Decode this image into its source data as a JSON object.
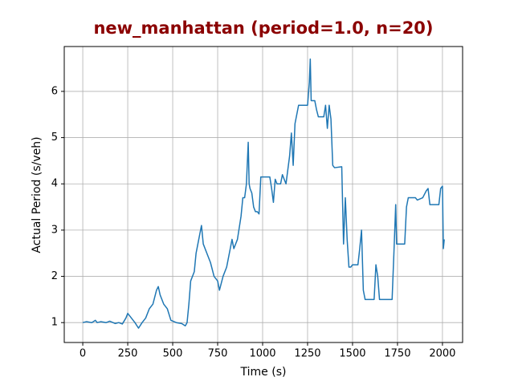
{
  "chart_data": {
    "type": "line",
    "title": "new_manhattan (period=1.0, n=20)",
    "title_color": "#8b0000",
    "x_label": "Time (s)",
    "y_label": "Actual Period (s/veh)",
    "xlim": [
      -103,
      2112
    ],
    "ylim": [
      0.57,
      6.97
    ],
    "xticks": [
      0,
      250,
      500,
      750,
      1000,
      1250,
      1500,
      1750,
      2000
    ],
    "yticks": [
      1,
      2,
      3,
      4,
      5,
      6
    ],
    "grid": true,
    "x": [
      0,
      20,
      50,
      70,
      80,
      100,
      130,
      150,
      180,
      200,
      220,
      240,
      250,
      270,
      290,
      310,
      330,
      350,
      370,
      390,
      410,
      420,
      430,
      450,
      470,
      490,
      520,
      550,
      570,
      580,
      590,
      600,
      620,
      630,
      640,
      650,
      660,
      670,
      690,
      710,
      730,
      750,
      760,
      780,
      800,
      820,
      830,
      840,
      860,
      880,
      890,
      900,
      910,
      920,
      925,
      930,
      940,
      950,
      960,
      970,
      980,
      990,
      1000,
      1040,
      1050,
      1060,
      1070,
      1080,
      1100,
      1110,
      1130,
      1150,
      1160,
      1170,
      1180,
      1200,
      1220,
      1250,
      1260,
      1265,
      1270,
      1290,
      1300,
      1310,
      1340,
      1350,
      1360,
      1370,
      1380,
      1390,
      1400,
      1440,
      1450,
      1460,
      1470,
      1480,
      1490,
      1500,
      1530,
      1540,
      1550,
      1560,
      1570,
      1620,
      1630,
      1640,
      1650,
      1700,
      1720,
      1730,
      1740,
      1745,
      1790,
      1800,
      1810,
      1850,
      1860,
      1890,
      1910,
      1920,
      1930,
      1980,
      1990,
      2000,
      2005,
      2010
    ],
    "series": [
      {
        "color": "#1f77b4",
        "values": [
          1.0,
          1.02,
          1.0,
          1.05,
          1.0,
          1.02,
          1.0,
          1.03,
          0.98,
          1.0,
          0.97,
          1.1,
          1.2,
          1.1,
          1.0,
          0.88,
          1.0,
          1.1,
          1.3,
          1.4,
          1.7,
          1.78,
          1.6,
          1.4,
          1.3,
          1.05,
          1.0,
          0.98,
          0.93,
          1.0,
          1.4,
          1.9,
          2.1,
          2.5,
          2.7,
          2.9,
          3.1,
          2.7,
          2.5,
          2.3,
          2.0,
          1.9,
          1.7,
          2.0,
          2.2,
          2.6,
          2.8,
          2.6,
          2.8,
          3.3,
          3.7,
          3.7,
          4.0,
          4.9,
          4.0,
          3.9,
          3.8,
          3.5,
          3.4,
          3.4,
          3.35,
          4.15,
          4.15,
          4.15,
          3.9,
          3.6,
          4.1,
          4.0,
          4.0,
          4.2,
          4.0,
          4.6,
          5.1,
          4.4,
          5.3,
          5.7,
          5.7,
          5.7,
          6.2,
          6.7,
          5.8,
          5.8,
          5.6,
          5.45,
          5.45,
          5.7,
          5.2,
          5.7,
          5.4,
          4.4,
          4.35,
          4.37,
          2.7,
          3.7,
          2.8,
          2.2,
          2.2,
          2.25,
          2.25,
          2.6,
          3.0,
          1.7,
          1.5,
          1.5,
          2.25,
          2.0,
          1.5,
          1.5,
          1.5,
          2.5,
          3.55,
          2.7,
          2.7,
          3.5,
          3.7,
          3.7,
          3.65,
          3.7,
          3.85,
          3.9,
          3.55,
          3.55,
          3.9,
          3.95,
          2.6,
          2.8
        ]
      }
    ]
  }
}
